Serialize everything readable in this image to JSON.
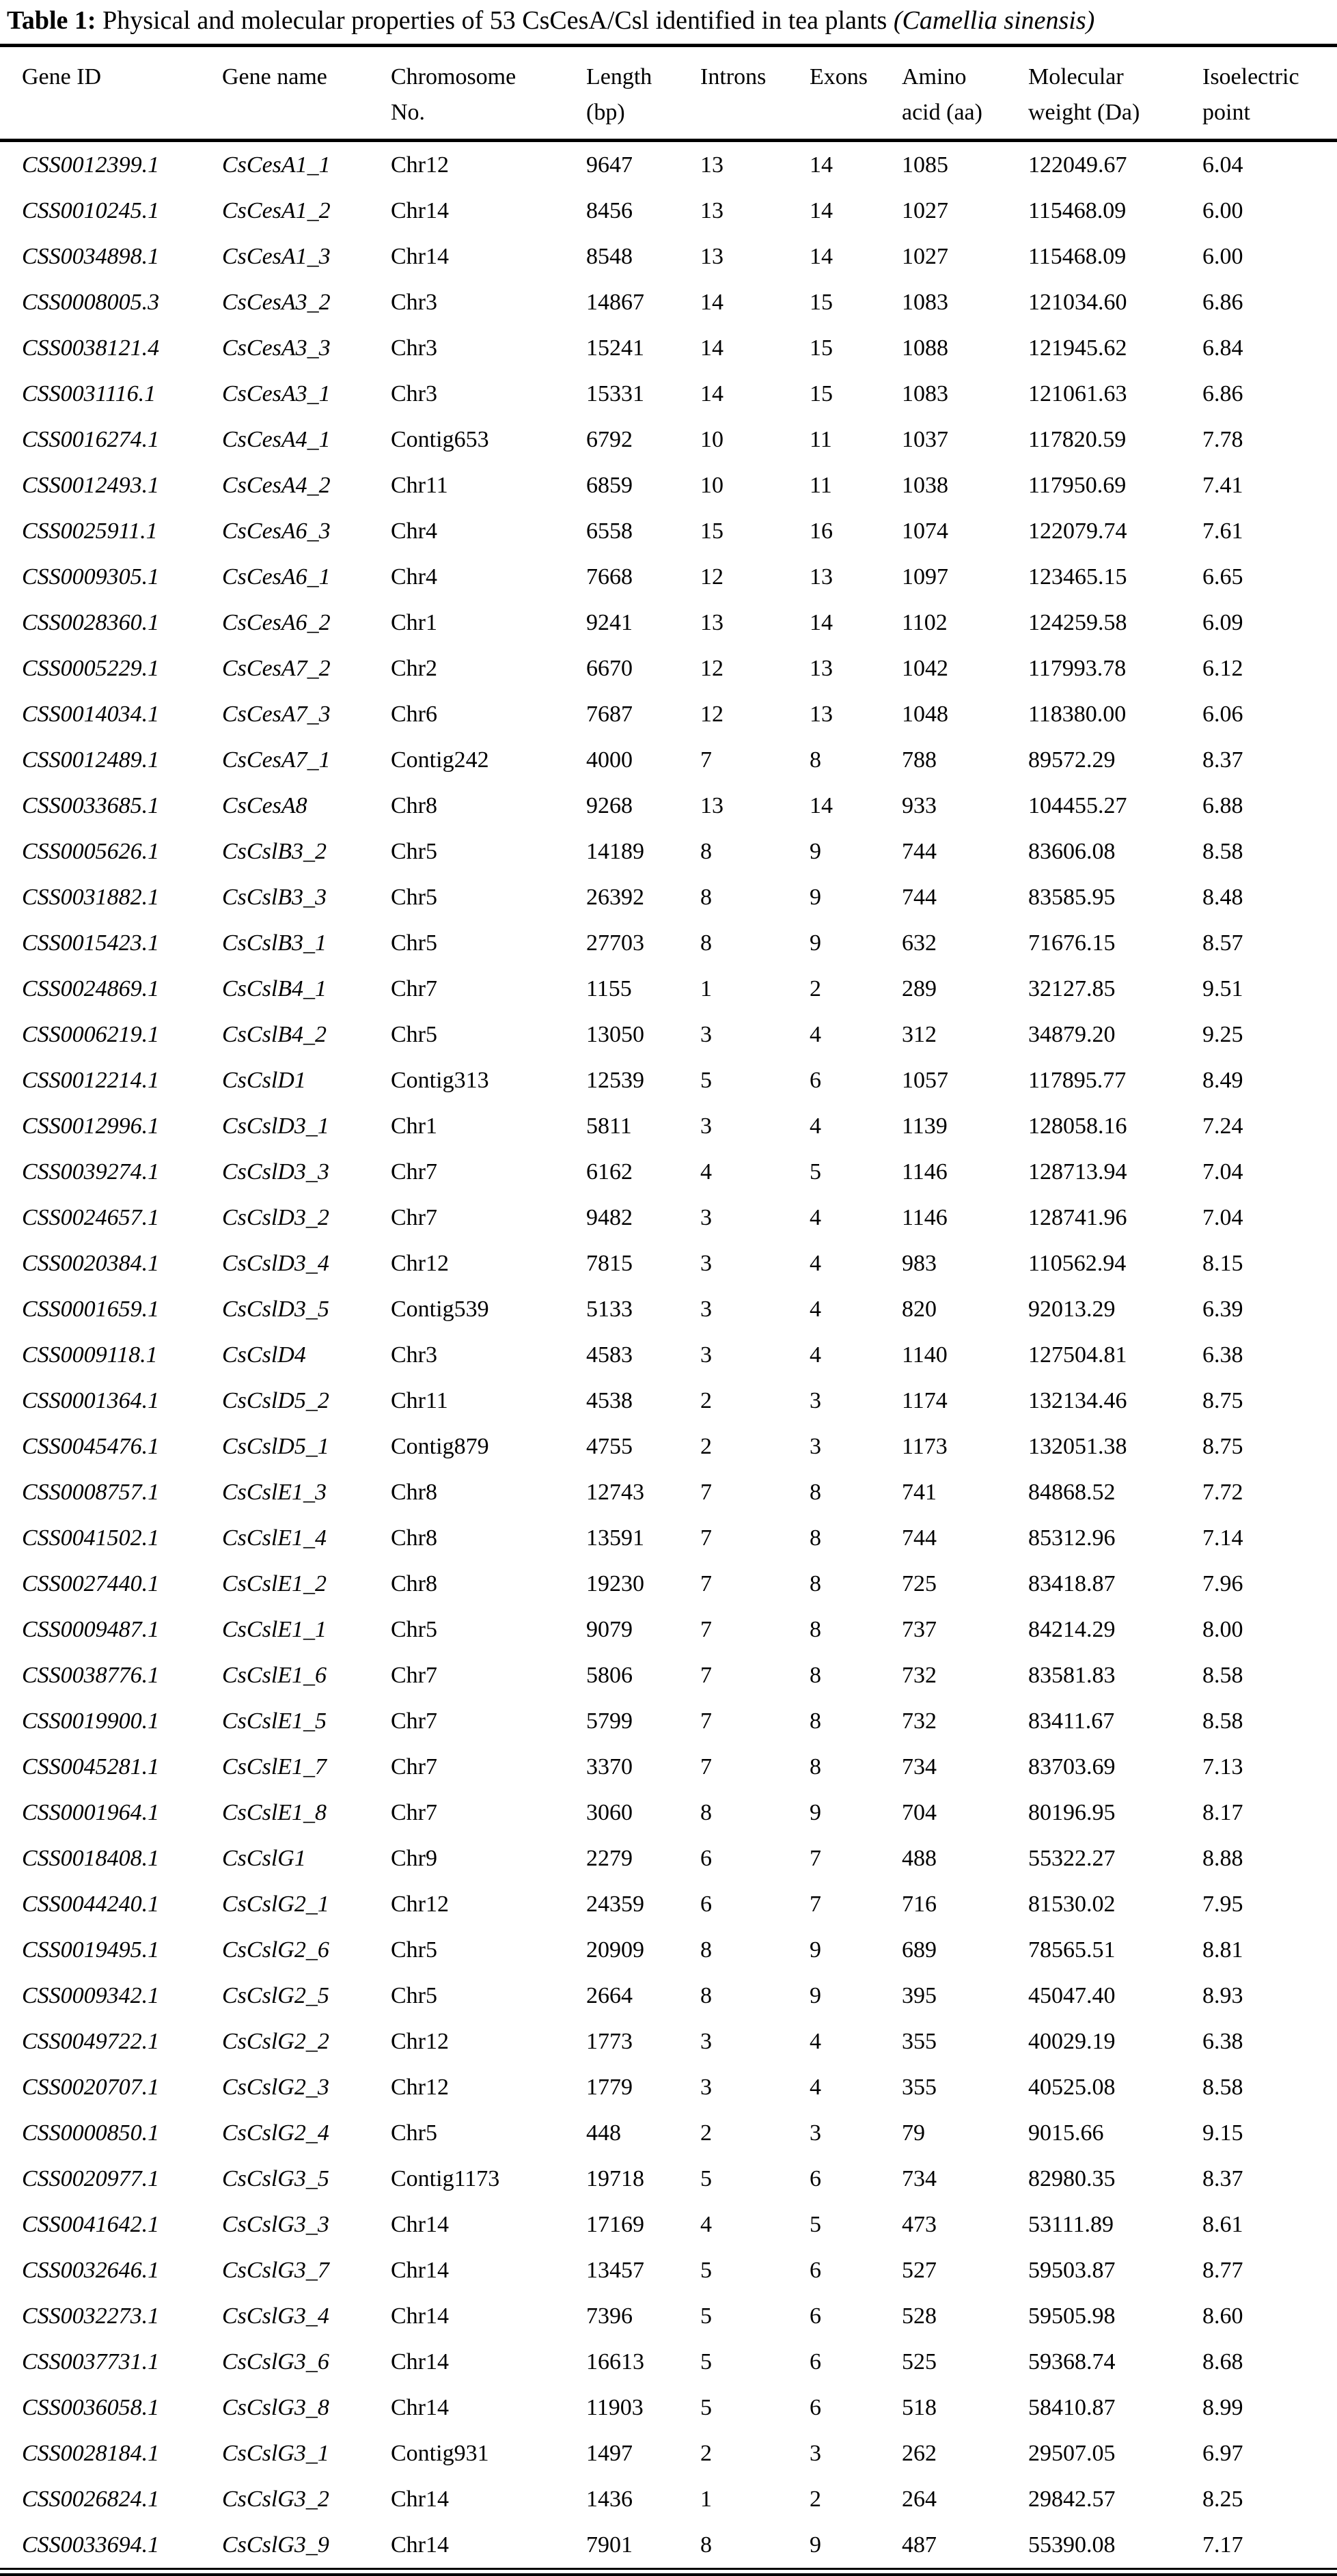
{
  "title": {
    "label": "Table 1:",
    "text": "Physical and molecular properties of 53 CsCesA/Csl identified in tea plants",
    "species": "(Camellia sinensis)"
  },
  "table": {
    "columns": [
      "Gene ID",
      "Gene name",
      "Chromosome\nNo.",
      "Length\n(bp)",
      "Introns",
      "Exons",
      "Amino\nacid (aa)",
      "Molecular\nweight (Da)",
      "Isoelectric\npoint"
    ],
    "rows": [
      [
        "CSS0012399.1",
        "CsCesA1_1",
        "Chr12",
        "9647",
        "13",
        "14",
        "1085",
        "122049.67",
        "6.04"
      ],
      [
        "CSS0010245.1",
        "CsCesA1_2",
        "Chr14",
        "8456",
        "13",
        "14",
        "1027",
        "115468.09",
        "6.00"
      ],
      [
        "CSS0034898.1",
        "CsCesA1_3",
        "Chr14",
        "8548",
        "13",
        "14",
        "1027",
        "115468.09",
        "6.00"
      ],
      [
        "CSS0008005.3",
        "CsCesA3_2",
        "Chr3",
        "14867",
        "14",
        "15",
        "1083",
        "121034.60",
        "6.86"
      ],
      [
        "CSS0038121.4",
        "CsCesA3_3",
        "Chr3",
        "15241",
        "14",
        "15",
        "1088",
        "121945.62",
        "6.84"
      ],
      [
        "CSS0031116.1",
        "CsCesA3_1",
        "Chr3",
        "15331",
        "14",
        "15",
        "1083",
        "121061.63",
        "6.86"
      ],
      [
        "CSS0016274.1",
        "CsCesA4_1",
        "Contig653",
        "6792",
        "10",
        "11",
        "1037",
        "117820.59",
        "7.78"
      ],
      [
        "CSS0012493.1",
        "CsCesA4_2",
        "Chr11",
        "6859",
        "10",
        "11",
        "1038",
        "117950.69",
        "7.41"
      ],
      [
        "CSS0025911.1",
        "CsCesA6_3",
        "Chr4",
        "6558",
        "15",
        "16",
        "1074",
        "122079.74",
        "7.61"
      ],
      [
        "CSS0009305.1",
        "CsCesA6_1",
        "Chr4",
        "7668",
        "12",
        "13",
        "1097",
        "123465.15",
        "6.65"
      ],
      [
        "CSS0028360.1",
        "CsCesA6_2",
        "Chr1",
        "9241",
        "13",
        "14",
        "1102",
        "124259.58",
        "6.09"
      ],
      [
        "CSS0005229.1",
        "CsCesA7_2",
        "Chr2",
        "6670",
        "12",
        "13",
        "1042",
        "117993.78",
        "6.12"
      ],
      [
        "CSS0014034.1",
        "CsCesA7_3",
        "Chr6",
        "7687",
        "12",
        "13",
        "1048",
        "118380.00",
        "6.06"
      ],
      [
        "CSS0012489.1",
        "CsCesA7_1",
        "Contig242",
        "4000",
        "7",
        "8",
        "788",
        "89572.29",
        "8.37"
      ],
      [
        "CSS0033685.1",
        "CsCesA8",
        "Chr8",
        "9268",
        "13",
        "14",
        "933",
        "104455.27",
        "6.88"
      ],
      [
        "CSS0005626.1",
        "CsCslB3_2",
        "Chr5",
        "14189",
        "8",
        "9",
        "744",
        "83606.08",
        "8.58"
      ],
      [
        "CSS0031882.1",
        "CsCslB3_3",
        "Chr5",
        "26392",
        "8",
        "9",
        "744",
        "83585.95",
        "8.48"
      ],
      [
        "CSS0015423.1",
        "CsCslB3_1",
        "Chr5",
        "27703",
        "8",
        "9",
        "632",
        "71676.15",
        "8.57"
      ],
      [
        "CSS0024869.1",
        "CsCslB4_1",
        "Chr7",
        "1155",
        "1",
        "2",
        "289",
        "32127.85",
        "9.51"
      ],
      [
        "CSS0006219.1",
        "CsCslB4_2",
        "Chr5",
        "13050",
        "3",
        "4",
        "312",
        "34879.20",
        "9.25"
      ],
      [
        "CSS0012214.1",
        "CsCslD1",
        "Contig313",
        "12539",
        "5",
        "6",
        "1057",
        "117895.77",
        "8.49"
      ],
      [
        "CSS0012996.1",
        "CsCslD3_1",
        "Chr1",
        "5811",
        "3",
        "4",
        "1139",
        "128058.16",
        "7.24"
      ],
      [
        "CSS0039274.1",
        "CsCslD3_3",
        "Chr7",
        "6162",
        "4",
        "5",
        "1146",
        "128713.94",
        "7.04"
      ],
      [
        "CSS0024657.1",
        "CsCslD3_2",
        "Chr7",
        "9482",
        "3",
        "4",
        "1146",
        "128741.96",
        "7.04"
      ],
      [
        "CSS0020384.1",
        "CsCslD3_4",
        "Chr12",
        "7815",
        "3",
        "4",
        "983",
        "110562.94",
        "8.15"
      ],
      [
        "CSS0001659.1",
        "CsCslD3_5",
        "Contig539",
        "5133",
        "3",
        "4",
        "820",
        "92013.29",
        "6.39"
      ],
      [
        "CSS0009118.1",
        "CsCslD4",
        "Chr3",
        "4583",
        "3",
        "4",
        "1140",
        "127504.81",
        "6.38"
      ],
      [
        "CSS0001364.1",
        "CsCslD5_2",
        "Chr11",
        "4538",
        "2",
        "3",
        "1174",
        "132134.46",
        "8.75"
      ],
      [
        "CSS0045476.1",
        "CsCslD5_1",
        "Contig879",
        "4755",
        "2",
        "3",
        "1173",
        "132051.38",
        "8.75"
      ],
      [
        "CSS0008757.1",
        "CsCslE1_3",
        "Chr8",
        "12743",
        "7",
        "8",
        "741",
        "84868.52",
        "7.72"
      ],
      [
        "CSS0041502.1",
        "CsCslE1_4",
        "Chr8",
        "13591",
        "7",
        "8",
        "744",
        "85312.96",
        "7.14"
      ],
      [
        "CSS0027440.1",
        "CsCslE1_2",
        "Chr8",
        "19230",
        "7",
        "8",
        "725",
        "83418.87",
        "7.96"
      ],
      [
        "CSS0009487.1",
        "CsCslE1_1",
        "Chr5",
        "9079",
        "7",
        "8",
        "737",
        "84214.29",
        "8.00"
      ],
      [
        "CSS0038776.1",
        "CsCslE1_6",
        "Chr7",
        "5806",
        "7",
        "8",
        "732",
        "83581.83",
        "8.58"
      ],
      [
        "CSS0019900.1",
        "CsCslE1_5",
        "Chr7",
        "5799",
        "7",
        "8",
        "732",
        "83411.67",
        "8.58"
      ],
      [
        "CSS0045281.1",
        "CsCslE1_7",
        "Chr7",
        "3370",
        "7",
        "8",
        "734",
        "83703.69",
        "7.13"
      ],
      [
        "CSS0001964.1",
        "CsCslE1_8",
        "Chr7",
        "3060",
        "8",
        "9",
        "704",
        "80196.95",
        "8.17"
      ],
      [
        "CSS0018408.1",
        "CsCslG1",
        "Chr9",
        "2279",
        "6",
        "7",
        "488",
        "55322.27",
        "8.88"
      ],
      [
        "CSS0044240.1",
        "CsCslG2_1",
        "Chr12",
        "24359",
        "6",
        "7",
        "716",
        "81530.02",
        "7.95"
      ],
      [
        "CSS0019495.1",
        "CsCslG2_6",
        "Chr5",
        "20909",
        "8",
        "9",
        "689",
        "78565.51",
        "8.81"
      ],
      [
        "CSS0009342.1",
        "CsCslG2_5",
        "Chr5",
        "2664",
        "8",
        "9",
        "395",
        "45047.40",
        "8.93"
      ],
      [
        "CSS0049722.1",
        "CsCslG2_2",
        "Chr12",
        "1773",
        "3",
        "4",
        "355",
        "40029.19",
        "6.38"
      ],
      [
        "CSS0020707.1",
        "CsCslG2_3",
        "Chr12",
        "1779",
        "3",
        "4",
        "355",
        "40525.08",
        "8.58"
      ],
      [
        "CSS0000850.1",
        "CsCslG2_4",
        "Chr5",
        "448",
        "2",
        "3",
        "79",
        "9015.66",
        "9.15"
      ],
      [
        "CSS0020977.1",
        "CsCslG3_5",
        "Contig1173",
        "19718",
        "5",
        "6",
        "734",
        "82980.35",
        "8.37"
      ],
      [
        "CSS0041642.1",
        "CsCslG3_3",
        "Chr14",
        "17169",
        "4",
        "5",
        "473",
        "53111.89",
        "8.61"
      ],
      [
        "CSS0032646.1",
        "CsCslG3_7",
        "Chr14",
        "13457",
        "5",
        "6",
        "527",
        "59503.87",
        "8.77"
      ],
      [
        "CSS0032273.1",
        "CsCslG3_4",
        "Chr14",
        "7396",
        "5",
        "6",
        "528",
        "59505.98",
        "8.60"
      ],
      [
        "CSS0037731.1",
        "CsCslG3_6",
        "Chr14",
        "16613",
        "5",
        "6",
        "525",
        "59368.74",
        "8.68"
      ],
      [
        "CSS0036058.1",
        "CsCslG3_8",
        "Chr14",
        "11903",
        "5",
        "6",
        "518",
        "58410.87",
        "8.99"
      ],
      [
        "CSS0028184.1",
        "CsCslG3_1",
        "Contig931",
        "1497",
        "2",
        "3",
        "262",
        "29507.05",
        "6.97"
      ],
      [
        "CSS0026824.1",
        "CsCslG3_2",
        "Chr14",
        "1436",
        "1",
        "2",
        "264",
        "29842.57",
        "8.25"
      ],
      [
        "CSS0033694.1",
        "CsCslG3_9",
        "Chr14",
        "7901",
        "8",
        "9",
        "487",
        "55390.08",
        "7.17"
      ]
    ]
  }
}
